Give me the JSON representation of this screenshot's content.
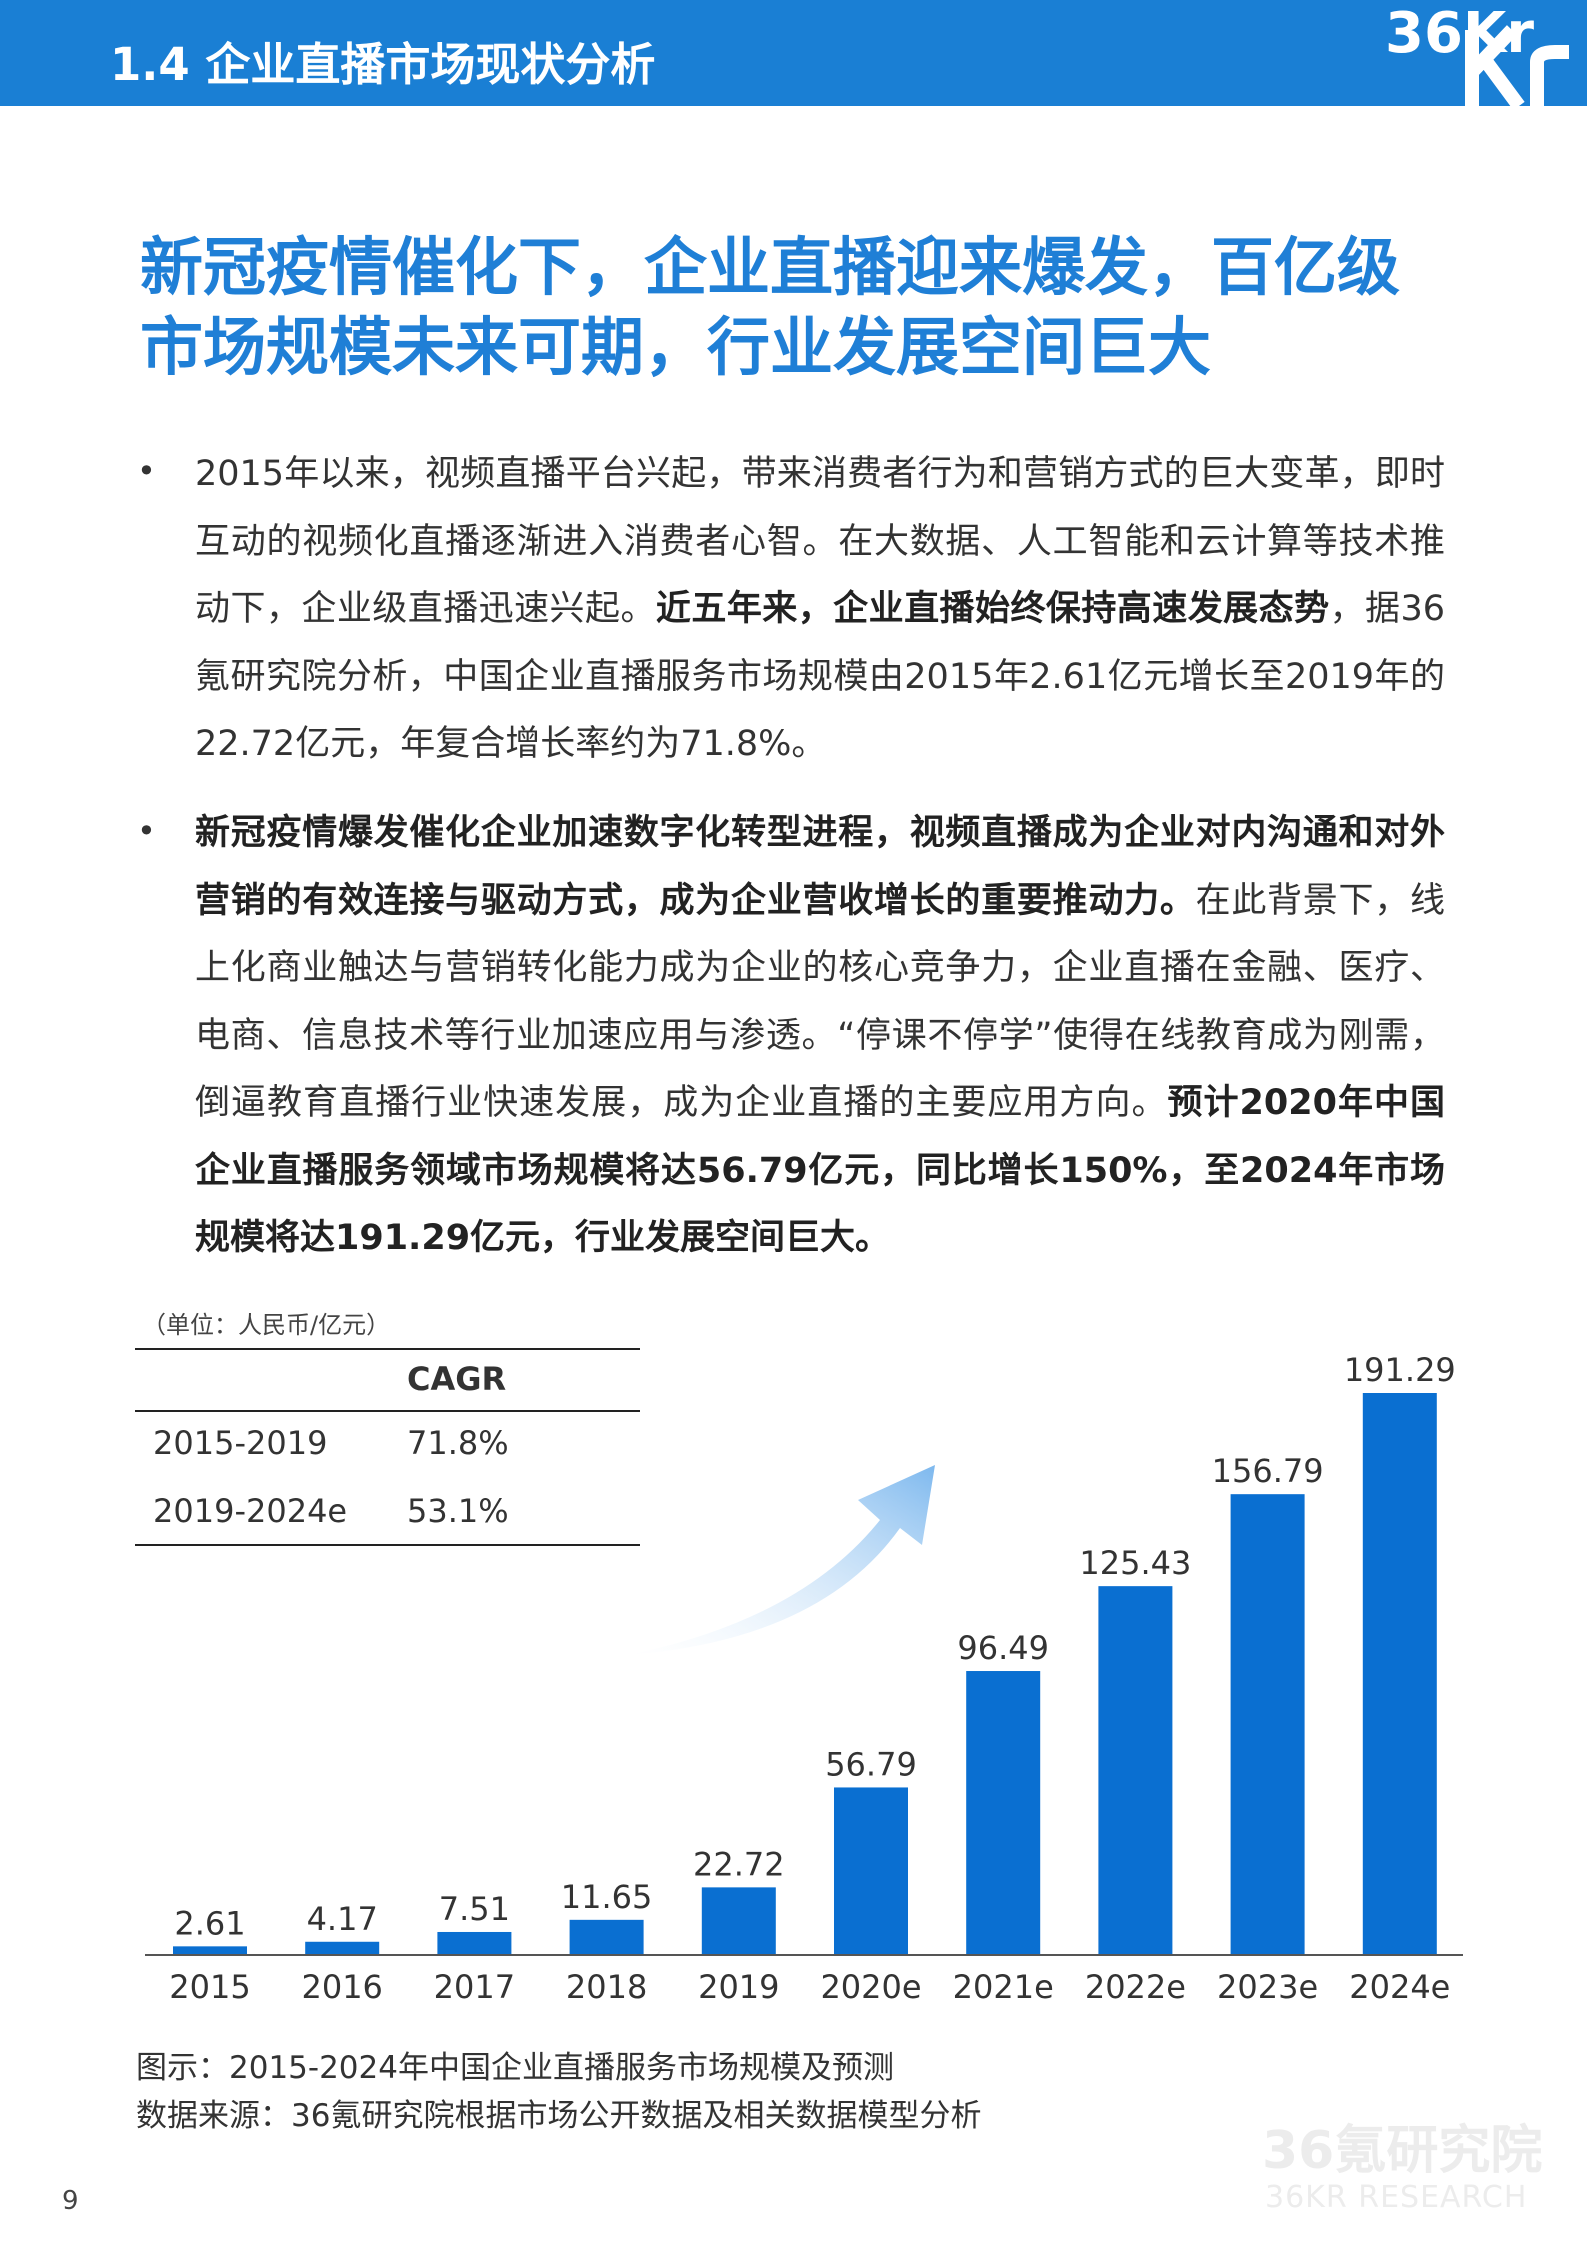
{
  "section": {
    "title": "1.4 企业直播市场现状分析",
    "logo": "36Kr"
  },
  "headline": {
    "line1": "新冠疫情催化下，企业直播迎来爆发，百亿级",
    "line2": "市场规模未来可期，行业发展空间巨大"
  },
  "bullets": [
    {
      "bullet": "•",
      "part1": "2015年以来，视频直播平台兴起，带来消费者行为和营销方式的巨大变革，即时互动的视频化直播逐渐进入消费者心智。在大数据、人工智能和云计算等技术推动下，企业级直播迅速兴起。",
      "bold1": "近五年来，企业直播始终保持高速发展态势",
      "part2": "，据36氪研究院分析，中国企业直播服务市场规模由2015年2.61亿元增长至2019年的22.72亿元，年复合增长率约为71.8%。"
    },
    {
      "bullet": "•",
      "bold1": "新冠疫情爆发催化企业加速数字化转型进程，视频直播成为企业对内沟通和对外营销的有效连接与驱动方式，成为企业营收增长的重要推动力。",
      "part1": "在此背景下，线上化商业触达与营销转化能力成为企业的核心竞争力，企业直播在金融、医疗、电商、信息技术等行业加速应用与渗透。“停课不停学”使得在线教育成为刚需，倒逼教育直播行业快速发展，成为企业直播的主要应用方向。",
      "bold2": "预计2020年中国企业直播服务领域市场规模将达56.79亿元，同比增长150%，至2024年市场规模将达191.29亿元，行业发展空间巨大。"
    }
  ],
  "cagr_table": {
    "unit": "（单位：人民币/亿元）",
    "header": "CAGR",
    "rows": [
      {
        "period": "2015-2019",
        "rate": "71.8%"
      },
      {
        "period": "2019-2024e",
        "rate": "53.1%"
      }
    ]
  },
  "chart_data": {
    "type": "bar",
    "categories": [
      "2015",
      "2016",
      "2017",
      "2018",
      "2019",
      "2020e",
      "2021e",
      "2022e",
      "2023e",
      "2024e"
    ],
    "values": [
      2.61,
      4.17,
      7.51,
      11.65,
      22.72,
      56.79,
      96.49,
      125.43,
      156.79,
      191.29
    ],
    "data_labels": [
      "2.61",
      "4.17",
      "7.51",
      "11.65",
      "22.72",
      "56.79",
      "96.49",
      "125.43",
      "156.79",
      "191.29"
    ],
    "bar_color": "#0a6fd1",
    "arrow_color": "#7db8ee",
    "ylim": [
      0,
      191.29
    ],
    "grid": false
  },
  "caption": {
    "figure": "图示：2015-2024年中国企业直播服务市场规模及预测",
    "source": "数据来源：36氪研究院根据市场公开数据及相关数据模型分析"
  },
  "watermark": {
    "cn": "36氪研究院",
    "en": "36KR RESEARCH"
  },
  "page_number": "9"
}
